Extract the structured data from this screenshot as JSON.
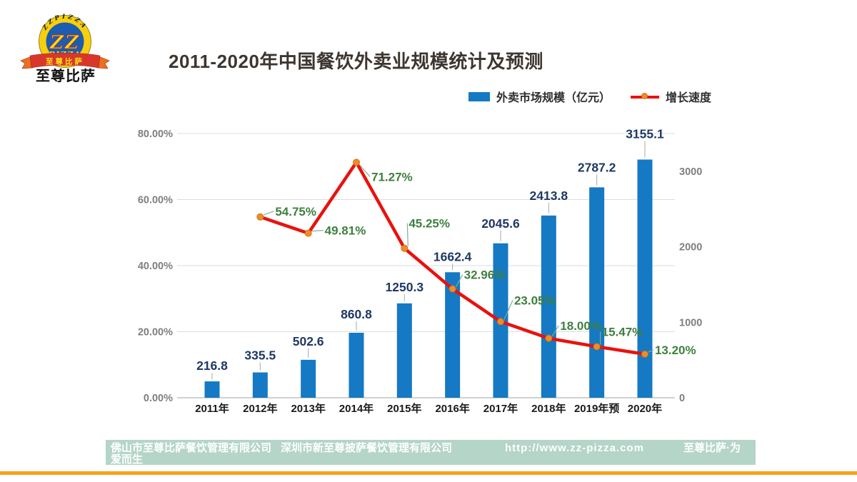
{
  "logo": {
    "arc_text": "ZZPIZZA",
    "monogram": "ZZ",
    "monogram_sub": "PIZZA",
    "ribbon_text": "至尊比萨",
    "wordmark": "至尊比萨",
    "colors": {
      "ring": "#f7cf0d",
      "circle": "#1d5cb0",
      "ribbon": "#d8372a",
      "tail": "#e9701d",
      "text_yellow": "#ffd813"
    }
  },
  "title": {
    "text": "2011-2020年中国餐饮外卖业规模统计及预测",
    "color": "#3d3630"
  },
  "legend": [
    {
      "label": "外卖市场规模（亿元）",
      "swatch": "bar",
      "color": "#1579c4"
    },
    {
      "label": "增长速度",
      "swatch": "line",
      "color": "#e8120d",
      "marker_color": "#f08c28"
    }
  ],
  "chart_data": {
    "type": "bar",
    "title": "2011-2020年中国餐饮外卖业规模统计及预测",
    "categories": [
      "2011年",
      "2012年",
      "2013年",
      "2014年",
      "2015年",
      "2016年",
      "2017年",
      "2018年",
      "2019年预",
      "2020年"
    ],
    "series": [
      {
        "name": "外卖市场规模（亿元）",
        "type": "bar",
        "axis": "right",
        "color": "#1579c4",
        "values": [
          216.8,
          335.5,
          502.6,
          860.8,
          1250.3,
          1662.4,
          2045.6,
          2413.8,
          2787.2,
          3155.1
        ],
        "labels": [
          "216.8",
          "335.5",
          "502.6",
          "860.8",
          "1250.3",
          "1662.4",
          "2045.6",
          "2413.8",
          "2787.2",
          "3155.1"
        ],
        "label_color": "#1f3864"
      },
      {
        "name": "增长速度",
        "type": "line",
        "axis": "left",
        "color": "#e8120d",
        "marker_color": "#f08c28",
        "values": [
          null,
          54.75,
          49.81,
          71.27,
          45.25,
          32.96,
          23.05,
          18.0,
          15.47,
          13.2
        ],
        "labels": [
          null,
          "54.75%",
          "49.81%",
          "71.27%",
          "45.25%",
          "32.96%",
          "23.05%",
          "18.00%",
          "15.47%",
          "13.20%"
        ],
        "label_color": "#3f7f3d"
      }
    ],
    "left_axis": {
      "min": 0,
      "max": 80,
      "ticks": [
        {
          "v": 0,
          "label": "0.00%"
        },
        {
          "v": 20,
          "label": "20.00%"
        },
        {
          "v": 40,
          "label": "40.00%"
        },
        {
          "v": 60,
          "label": "60.00%"
        },
        {
          "v": 80,
          "label": "80.00%"
        }
      ]
    },
    "right_axis": {
      "min": 0,
      "max": 3500,
      "ticks": [
        {
          "v": 0,
          "label": "0"
        },
        {
          "v": 1000,
          "label": "1000"
        },
        {
          "v": 2000,
          "label": "2000"
        },
        {
          "v": 3000,
          "label": "3000"
        }
      ]
    },
    "grid": true,
    "legend_position": "top-right",
    "bar_label_offsets": [
      22,
      24,
      26,
      26,
      23,
      22,
      28,
      28,
      28,
      36
    ],
    "line_label_offsets": [
      null,
      [
        21,
        -8
      ],
      [
        23,
        -4
      ],
      [
        21,
        20
      ],
      [
        6,
        -35
      ],
      [
        16,
        -20
      ],
      [
        19,
        -30
      ],
      [
        16,
        -18
      ],
      [
        7,
        -21
      ],
      [
        14,
        -6
      ]
    ]
  },
  "footer": {
    "bar_color": "#b4d5c8",
    "rule_color": "#f6a21d",
    "items": [
      {
        "text": "佛山市至尊比萨餐饮管理有限公司",
        "text2": "爱而生"
      },
      {
        "text": "深圳市新至尊披萨餐饮管理有限公司"
      },
      {
        "text": "http://www.zz-pizza.com"
      },
      {
        "text": "至尊比萨·为"
      }
    ]
  }
}
